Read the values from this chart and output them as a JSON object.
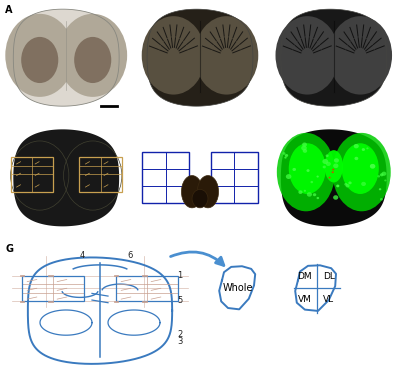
{
  "panel_A_bg": "#e8e4df",
  "panel_B_bg": "#0a0a0a",
  "panel_C_bg": "#050505",
  "panel_D_bg": "#060606",
  "panel_E_bg": "#0808dd",
  "panel_F_bg": "#040404",
  "panel_G_bg": "#ffffff",
  "diagram_color": "#3a7abf",
  "grid_color": "#c8a090",
  "arrow_color": "#4a8fd0",
  "figure_width": 4.0,
  "figure_height": 3.73,
  "figure_dpi": 100,
  "panel_border_color": "#555555",
  "whole_label": "Whole",
  "quadrant_labels": [
    "DM",
    "DL",
    "VM",
    "VL"
  ]
}
